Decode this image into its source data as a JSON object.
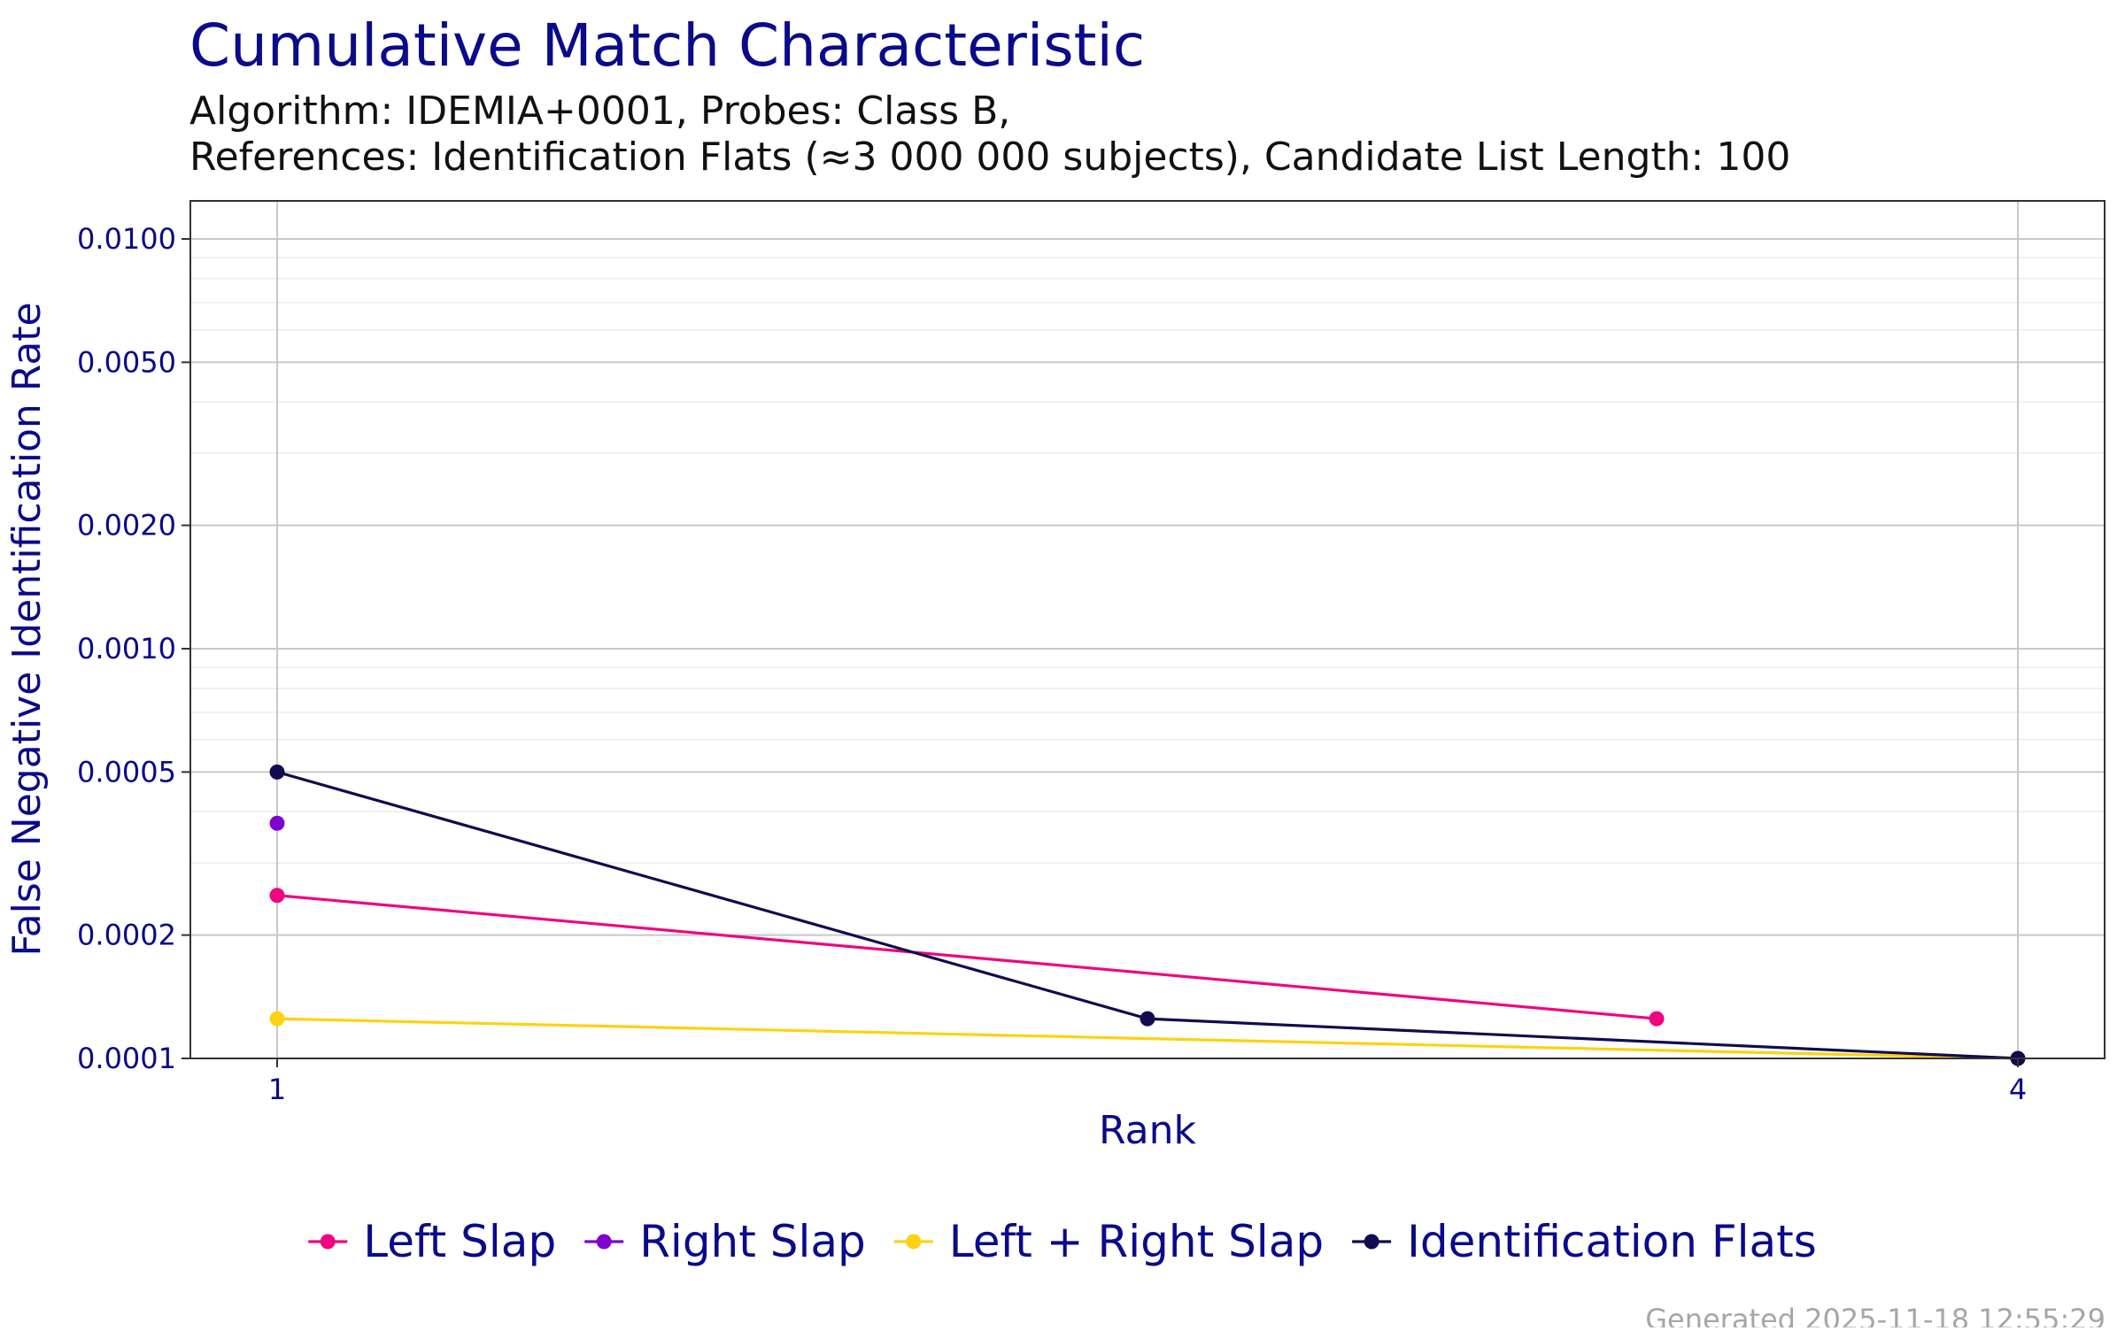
{
  "chart_data": {
    "type": "line",
    "title": "Cumulative Match Characteristic",
    "subtitle_line1": "Algorithm: IDEMIA+0001, Probes: Class B,",
    "subtitle_line2": "References: Identification Flats (≈3 000 000 subjects), Candidate List Length: 100",
    "xlabel": "Rank",
    "ylabel": "False Negative Identification Rate",
    "x_scale": "log",
    "y_scale": "log",
    "xlim": [
      1,
      4
    ],
    "ylim": [
      0.0001,
      0.01
    ],
    "x_ticks": [
      {
        "value": 1,
        "label": "1"
      },
      {
        "value": 4,
        "label": "4"
      }
    ],
    "y_ticks": [
      {
        "value": 0.0001,
        "label": "0.0001"
      },
      {
        "value": 0.0002,
        "label": "0.0002"
      },
      {
        "value": 0.0005,
        "label": "0.0005"
      },
      {
        "value": 0.001,
        "label": "0.0010"
      },
      {
        "value": 0.002,
        "label": "0.0020"
      },
      {
        "value": 0.005,
        "label": "0.0050"
      },
      {
        "value": 0.01,
        "label": "0.0100"
      }
    ],
    "y_minor_ticks": [
      0.0003,
      0.0004,
      0.0006,
      0.0007,
      0.0008,
      0.0009,
      0.003,
      0.004,
      0.006,
      0.007,
      0.008,
      0.009
    ],
    "grid": true,
    "legend_position": "bottom",
    "series": [
      {
        "name": "Left Slap",
        "color": "#f0047f",
        "x": [
          1,
          3
        ],
        "y": [
          0.00025,
          0.000125
        ]
      },
      {
        "name": "Right Slap",
        "color": "#7e03d1",
        "x": [
          1
        ],
        "y": [
          0.000375
        ]
      },
      {
        "name": "Left + Right Slap",
        "color": "#fdd211",
        "x": [
          1,
          4
        ],
        "y": [
          0.000125,
          0.0001
        ]
      },
      {
        "name": "Identification Flats",
        "color": "#0f0c4f",
        "x": [
          1,
          2,
          4
        ],
        "y": [
          0.0005,
          0.000125,
          0.0001
        ]
      }
    ]
  },
  "footer": {
    "generated": "Generated 2025-11-18 12:55:29"
  },
  "colors": {
    "title": "#0a0a8c",
    "axis_text": "#0a0a8c",
    "grid_major": "#c8c8c8",
    "grid_minor": "#ebebeb",
    "footer": "#a6a6a6"
  }
}
